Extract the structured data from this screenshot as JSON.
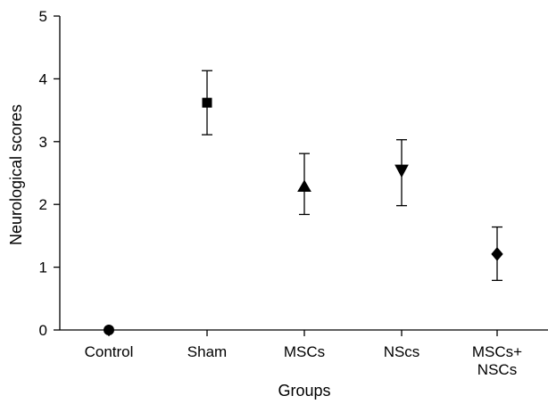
{
  "chart_data": {
    "type": "scatter",
    "title": "",
    "xlabel": "Groups",
    "ylabel": "Neurological scores",
    "ylim": [
      0,
      5
    ],
    "yticks": [
      0,
      1,
      2,
      3,
      4,
      5
    ],
    "grid": false,
    "legend": "none",
    "categories": [
      {
        "lines": [
          "Control"
        ]
      },
      {
        "lines": [
          "Sham"
        ]
      },
      {
        "lines": [
          "MSCs"
        ]
      },
      {
        "lines": [
          "NScs"
        ]
      },
      {
        "lines": [
          "MSCs+",
          "NSCs"
        ]
      }
    ],
    "points": [
      {
        "category": "Control",
        "mean": 0.0,
        "upper": 0.0,
        "lower": 0.0,
        "marker": "circle"
      },
      {
        "category": "Sham",
        "mean": 3.62,
        "upper": 4.13,
        "lower": 3.11,
        "marker": "square"
      },
      {
        "category": "MSCs",
        "mean": 2.28,
        "upper": 2.81,
        "lower": 1.84,
        "marker": "triangle-up"
      },
      {
        "category": "NScs",
        "mean": 2.54,
        "upper": 3.03,
        "lower": 1.98,
        "marker": "triangle-down"
      },
      {
        "category": "MSCs+NSCs",
        "mean": 1.21,
        "upper": 1.64,
        "lower": 0.79,
        "marker": "diamond"
      }
    ],
    "marker_color": "#000000"
  }
}
